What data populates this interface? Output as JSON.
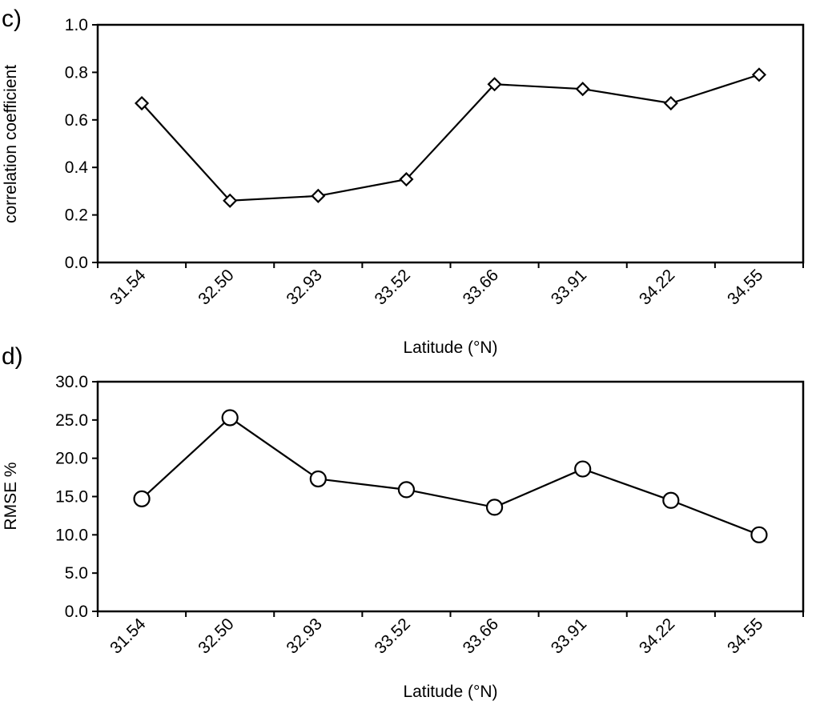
{
  "chart_data": [
    {
      "type": "line",
      "panel_label": "c)",
      "title": "",
      "xlabel": "Latitude (°N)",
      "ylabel": "correlation coefficient",
      "categories": [
        "31.54",
        "32.50",
        "32.93",
        "33.52",
        "33.66",
        "33.91",
        "34.22",
        "34.55"
      ],
      "values": [
        0.67,
        0.26,
        0.28,
        0.35,
        0.75,
        0.73,
        0.67,
        0.79
      ],
      "ylim": [
        0.0,
        1.0
      ],
      "yticks": [
        "0.0",
        "0.2",
        "0.4",
        "0.6",
        "0.8",
        "1.0"
      ],
      "marker": "diamond",
      "grid": false,
      "legend": "none"
    },
    {
      "type": "line",
      "panel_label": "d)",
      "title": "",
      "xlabel": "Latitude (°N)",
      "ylabel": "RMSE %",
      "categories": [
        "31.54",
        "32.50",
        "32.93",
        "33.52",
        "33.66",
        "33.91",
        "34.22",
        "34.55"
      ],
      "values": [
        14.7,
        25.3,
        17.3,
        15.9,
        13.6,
        18.6,
        14.5,
        10.0
      ],
      "ylim": [
        0.0,
        30.0
      ],
      "yticks": [
        "0.0",
        "5.0",
        "10.0",
        "15.0",
        "20.0",
        "25.0",
        "30.0"
      ],
      "marker": "circle",
      "grid": false,
      "legend": "none"
    }
  ],
  "colors": {
    "line": "#000000",
    "marker_fill": "#ffffff",
    "background": "#ffffff"
  }
}
